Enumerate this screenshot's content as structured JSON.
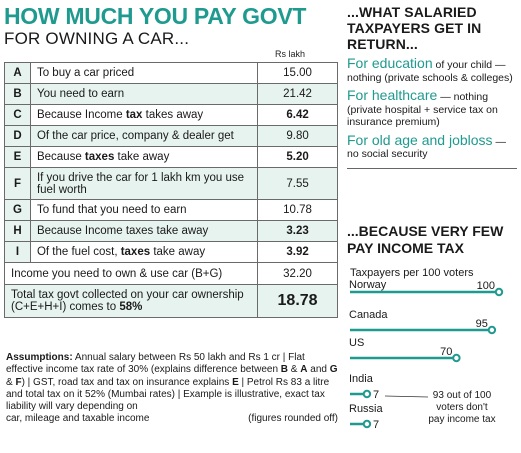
{
  "left": {
    "title": "HOW MUCH YOU PAY GOVT",
    "subtitle": "FOR OWNING A CAR...",
    "unit": "Rs lakh",
    "rows": [
      {
        "key": "A",
        "desc": "To buy a car priced",
        "value": "15.00"
      },
      {
        "key": "B",
        "desc": "You need to earn",
        "value": "21.42"
      },
      {
        "key": "C",
        "desc_pre": "Because Income ",
        "desc_bold": "tax",
        "desc_post": " takes away",
        "value": "6.42"
      },
      {
        "key": "D",
        "desc": "Of the car price, company & dealer get",
        "value": "9.80"
      },
      {
        "key": "E",
        "desc_pre": "Because ",
        "desc_bold": "taxes",
        "desc_post": " take away",
        "value": "5.20"
      },
      {
        "key": "F",
        "desc": "If you drive the car for 1 lakh km you use fuel worth",
        "value": "7.55"
      },
      {
        "key": "G",
        "desc": "To fund that you need to earn",
        "value": "10.78"
      },
      {
        "key": "H",
        "desc": "Because Income taxes take away",
        "value": "3.23"
      },
      {
        "key": "I",
        "desc_pre": "Of the fuel cost, ",
        "desc_bold": "taxes",
        "desc_post": " take away",
        "value": "3.92"
      }
    ],
    "income_row": {
      "desc": "Income you need to own & use car (B+G)",
      "value": "32.20"
    },
    "total_row": {
      "desc_pre": "Total tax govt collected on your car ownership (C+E+H+I) comes to ",
      "desc_bold": "58%",
      "value": "18.78"
    },
    "notes": {
      "label": "Assumptions:",
      "t1": " Annual salary between Rs 50 lakh and Rs 1 cr | Flat effective income tax rate of 30% (explains difference between ",
      "b1": "B",
      "t2": " & ",
      "b2": "A",
      "t3": " and ",
      "b3": "G",
      "t4": " & ",
      "b4": "F",
      "t5": ") | GST, road tax and tax on insurance explains ",
      "b5": "E",
      "t6": " | Petrol Rs 83 a litre and total tax on it 52% (Mumbai rates) | Example is illustrative, exact tax liability will vary depending on",
      "last_line": "car, mileage and taxable income",
      "rounded": "(figures rounded off)"
    }
  },
  "right": {
    "heading": "...WHAT SALARIED TAXPAYERS GET IN RETURN...",
    "items": [
      {
        "lead": "For education",
        "rest": " of your child — nothing (private schools & colleges)"
      },
      {
        "lead": "For healthcare",
        "rest": " — nothing (private hospital + service tax on insurance premium)"
      },
      {
        "lead": "For old age and jobloss",
        "rest": " — no social security"
      }
    ],
    "heading2": "...BECAUSE VERY FEW PAY INCOME TAX",
    "chart_subtitle": "Taxpayers per 100 voters",
    "annotation": "93 out of 100 voters don't pay income tax"
  },
  "chart_data": {
    "type": "bar",
    "orientation": "horizontal",
    "title": "...BECAUSE VERY FEW PAY INCOME TAX",
    "subtitle": "Taxpayers per 100 voters",
    "categories": [
      "Norway",
      "Canada",
      "US",
      "India",
      "Russia"
    ],
    "values": [
      100,
      95,
      70,
      7,
      7
    ],
    "xlim": [
      0,
      100
    ],
    "bar_color": "#1f9a8f",
    "annotation": "93 out of 100 voters don't pay income tax"
  },
  "colors": {
    "accent": "#1f9a8f",
    "shade": "#e7f3ef"
  }
}
